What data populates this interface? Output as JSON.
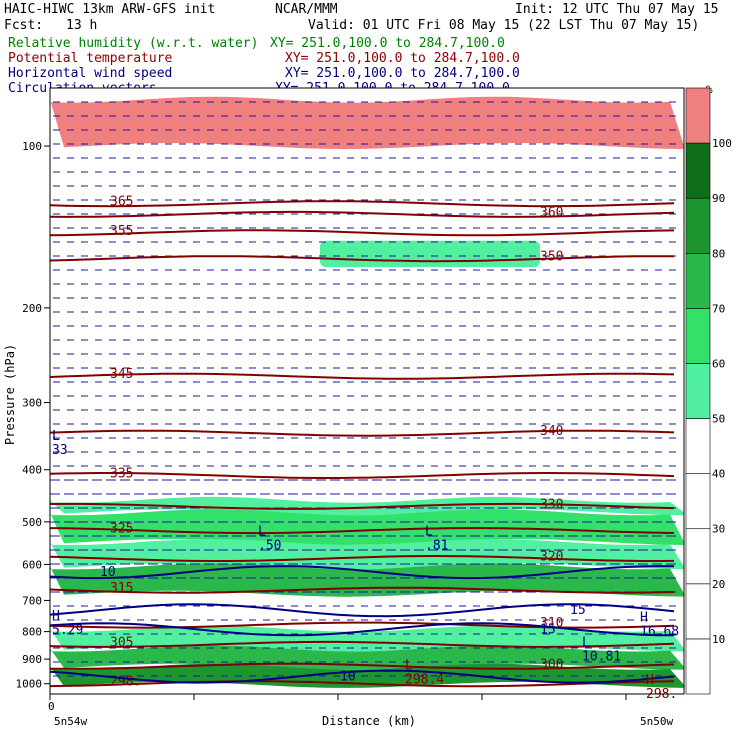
{
  "header": {
    "model": "HAIC-HIWC 13km ARW-GFS init",
    "org": "NCAR/MMM",
    "init": "Init: 12 UTC Thu 07 May 15",
    "fcst_label": "Fcst:",
    "fcst_value": "13 h",
    "valid": "Valid: 01 UTC Fri 08 May 15 (22 LST Thu 07 May 15)",
    "fields": [
      {
        "name": "Relative humidity (w.r.t. water)",
        "xy": "XY= 251.0,100.0 to 284.7,100.0",
        "color": "#008000"
      },
      {
        "name": "Potential temperature",
        "xy": "XY= 251.0,100.0 to 284.7,100.0",
        "color": "#8b0000"
      },
      {
        "name": "Horizontal wind speed",
        "xy": "XY= 251.0,100.0 to 284.7,100.0",
        "color": "#000080"
      },
      {
        "name": "Circulation vectors",
        "xy": "XY= 251.0,100.0 to 284.7,100.0",
        "color": "#000080"
      }
    ]
  },
  "chart_data": {
    "type": "heatmap",
    "title": "",
    "xlabel": "Distance (km)",
    "ylabel": "Pressure (hPa)",
    "x_tick_labels": [
      "0"
    ],
    "x_endpoint_labels": [
      "5n54w",
      "5n50w"
    ],
    "y_ticks": [
      100,
      200,
      300,
      400,
      500,
      600,
      700,
      800,
      900,
      1000
    ],
    "y_scale": "log",
    "ylim": [
      1045,
      78
    ],
    "grid": false,
    "colorbar": {
      "unit": "%",
      "levels": [
        10,
        20,
        30,
        40,
        50,
        60,
        70,
        80,
        90,
        100
      ],
      "colors": [
        "#ffffff",
        "#ffffff",
        "#ffffff",
        "#ffffff",
        "#ffffff",
        "#50f0a0",
        "#33e06a",
        "#2ab84a",
        "#1c962e",
        "#0e6e1a",
        "#f08080"
      ]
    },
    "theta_isolines": [
      {
        "label": "365",
        "p": 128
      },
      {
        "label": "360",
        "p": 134
      },
      {
        "label": "355",
        "p": 145
      },
      {
        "label": "350",
        "p": 162
      },
      {
        "label": "345",
        "p": 268
      },
      {
        "label": "340",
        "p": 342
      },
      {
        "label": "335",
        "p": 410
      },
      {
        "label": "330",
        "p": 468
      },
      {
        "label": "325",
        "p": 519
      },
      {
        "label": "320",
        "p": 585
      },
      {
        "label": "315",
        "p": 670
      },
      {
        "label": "310",
        "p": 778
      },
      {
        "label": "305",
        "p": 845
      },
      {
        "label": "300",
        "p": 928
      },
      {
        "label": "298.",
        "p": 1000
      }
    ],
    "wind_isotachs": [
      {
        "label": "10",
        "p": 620
      },
      {
        "label": "15",
        "p": 730
      },
      {
        "label": "15",
        "p": 792
      },
      {
        "label": "10",
        "p": 970
      }
    ],
    "extrema": [
      {
        "kind": "L",
        "value": "33",
        "p": 355
      },
      {
        "kind": "L",
        "value": ".50",
        "p": 535
      },
      {
        "kind": "L",
        "value": ".81",
        "p": 535
      },
      {
        "kind": "H",
        "value": "5.29",
        "p": 768
      },
      {
        "kind": "H",
        "value": "16.68",
        "p": 772
      },
      {
        "kind": "L",
        "value": "10.81",
        "p": 860
      },
      {
        "kind": "L",
        "value": "298.4",
        "p": 950
      },
      {
        "kind": "H",
        "value": "298.",
        "p": 1010
      }
    ],
    "rh_layers": [
      {
        "pmin": 82,
        "pmax": 100,
        "rh": 100
      },
      {
        "pmin": 150,
        "pmax": 168,
        "rh": 55
      },
      {
        "pmin": 455,
        "pmax": 480,
        "rh": 55
      },
      {
        "pmin": 480,
        "pmax": 545,
        "rh": 65
      },
      {
        "pmin": 545,
        "pmax": 605,
        "rh": 55
      },
      {
        "pmin": 605,
        "pmax": 680,
        "rh": 70
      },
      {
        "pmin": 790,
        "pmax": 860,
        "rh": 55
      },
      {
        "pmin": 860,
        "pmax": 930,
        "rh": 70
      },
      {
        "pmin": 930,
        "pmax": 1005,
        "rh": 85
      }
    ]
  }
}
